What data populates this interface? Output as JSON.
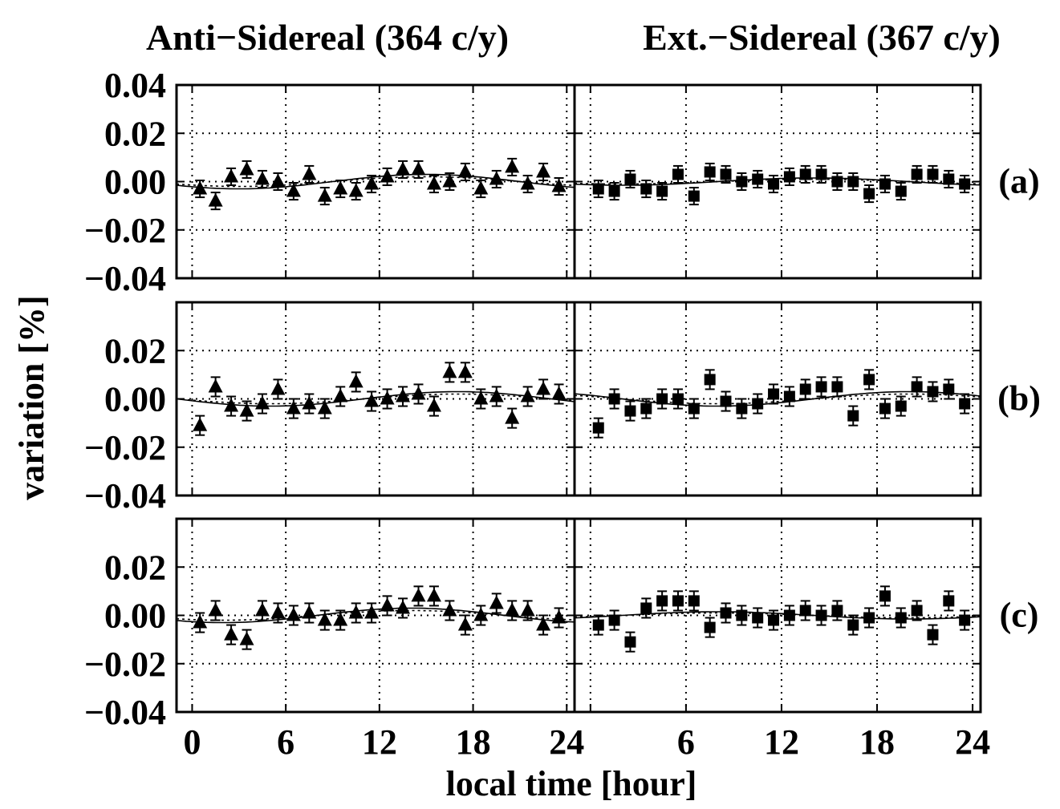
{
  "figure": {
    "title_left": "Anti−Sidereal (364 c/y)",
    "title_right": "Ext.−Sidereal (367 c/y)",
    "xlabel": "local time [hour]",
    "ylabel": "variation [%]"
  },
  "chart_data": [
    {
      "type": "scatter",
      "row_label": "(a)",
      "column": "Anti−Sidereal (364 c/y)",
      "marker": "triangle",
      "xlim": [
        -1,
        24.5
      ],
      "ylim": [
        -0.04,
        0.04
      ],
      "yticks": [
        "0.04",
        "0.02",
        "0.00",
        "−0.02",
        "−0.04"
      ],
      "xticks": [
        "0",
        "6",
        "12",
        "18",
        "24"
      ],
      "x": [
        0.5,
        1.5,
        2.5,
        3.5,
        4.5,
        5.5,
        6.5,
        7.5,
        8.5,
        9.5,
        10.5,
        11.5,
        12.5,
        13.5,
        14.5,
        15.5,
        16.5,
        17.5,
        18.5,
        19.5,
        20.5,
        21.5,
        22.5,
        23.5
      ],
      "y": [
        -0.003,
        -0.008,
        0.002,
        0.005,
        0.001,
        0.0,
        -0.004,
        0.003,
        -0.006,
        -0.003,
        -0.004,
        -0.001,
        0.002,
        0.005,
        0.005,
        -0.001,
        0.0,
        0.004,
        -0.003,
        0.001,
        0.006,
        -0.001,
        0.004,
        -0.002
      ],
      "error": 0.0035,
      "fit": {
        "mean": 0.0,
        "amp": 0.003,
        "phase_hour": 15
      },
      "fit_dotted": {
        "mean": 0.0,
        "amp": 0.002,
        "phase_hour": 15
      }
    },
    {
      "type": "scatter",
      "row_label": "(a)",
      "column": "Ext.−Sidereal (367 c/y)",
      "marker": "square",
      "xlim": [
        -1,
        24.5
      ],
      "ylim": [
        -0.04,
        0.04
      ],
      "yticks": [
        "0.04",
        "0.02",
        "0.00",
        "−0.02",
        "−0.04"
      ],
      "xticks": [
        "0",
        "6",
        "12",
        "18",
        "24"
      ],
      "x": [
        0.5,
        1.5,
        2.5,
        3.5,
        4.5,
        5.5,
        6.5,
        7.5,
        8.5,
        9.5,
        10.5,
        11.5,
        12.5,
        13.5,
        14.5,
        15.5,
        16.5,
        17.5,
        18.5,
        19.5,
        20.5,
        21.5,
        22.5,
        23.5
      ],
      "y": [
        -0.003,
        -0.004,
        0.001,
        -0.003,
        -0.004,
        0.003,
        -0.006,
        0.004,
        0.003,
        0.0,
        0.001,
        -0.001,
        0.002,
        0.003,
        0.003,
        0.0,
        0.0,
        -0.005,
        -0.001,
        -0.004,
        0.003,
        0.003,
        0.001,
        -0.001
      ],
      "error": 0.0035,
      "fit": {
        "mean": 0.0,
        "amp": 0.0015,
        "phase_hour": 14
      },
      "fit_dotted": {
        "mean": 0.0,
        "amp": 0.001,
        "phase_hour": 14
      }
    },
    {
      "type": "scatter",
      "row_label": "(b)",
      "column": "Anti−Sidereal (364 c/y)",
      "marker": "triangle",
      "xlim": [
        -1,
        24.5
      ],
      "ylim": [
        -0.04,
        0.04
      ],
      "yticks": [
        "0.02",
        "0.00",
        "−0.02",
        "−0.04"
      ],
      "xticks": [
        "0",
        "6",
        "12",
        "18",
        "24"
      ],
      "x": [
        0.5,
        1.5,
        2.5,
        3.5,
        4.5,
        5.5,
        6.5,
        7.5,
        8.5,
        9.5,
        10.5,
        11.5,
        12.5,
        13.5,
        14.5,
        15.5,
        16.5,
        17.5,
        18.5,
        19.5,
        20.5,
        21.5,
        22.5,
        23.5
      ],
      "y": [
        -0.011,
        0.005,
        -0.003,
        -0.005,
        -0.002,
        0.004,
        -0.004,
        -0.002,
        -0.004,
        0.001,
        0.007,
        -0.001,
        0.0,
        0.001,
        0.002,
        -0.003,
        0.011,
        0.011,
        0.0,
        0.001,
        -0.008,
        0.001,
        0.004,
        0.002
      ],
      "error": 0.004,
      "fit": {
        "mean": 0.0,
        "amp": 0.003,
        "phase_hour": 17
      },
      "fit_dotted": {
        "mean": 0.0,
        "amp": 0.002,
        "phase_hour": 17
      }
    },
    {
      "type": "scatter",
      "row_label": "(b)",
      "column": "Ext.−Sidereal (367 c/y)",
      "marker": "square",
      "xlim": [
        -1,
        24.5
      ],
      "ylim": [
        -0.04,
        0.04
      ],
      "yticks": [
        "0.02",
        "0.00",
        "−0.02",
        "−0.04"
      ],
      "xticks": [
        "0",
        "6",
        "12",
        "18",
        "24"
      ],
      "x": [
        0.5,
        1.5,
        2.5,
        3.5,
        4.5,
        5.5,
        6.5,
        7.5,
        8.5,
        9.5,
        10.5,
        11.5,
        12.5,
        13.5,
        14.5,
        15.5,
        16.5,
        17.5,
        18.5,
        19.5,
        20.5,
        21.5,
        22.5,
        23.5
      ],
      "y": [
        -0.012,
        0.0,
        -0.005,
        -0.004,
        0.0,
        0.0,
        -0.004,
        0.008,
        -0.001,
        -0.004,
        -0.002,
        0.002,
        0.001,
        0.004,
        0.005,
        0.005,
        -0.007,
        0.008,
        -0.004,
        -0.003,
        0.005,
        0.003,
        0.004,
        -0.002
      ],
      "error": 0.004,
      "fit": {
        "mean": 0.0,
        "amp": 0.003,
        "phase_hour": 20
      },
      "fit_dotted": {
        "mean": 0.0,
        "amp": 0.002,
        "phase_hour": 20
      }
    },
    {
      "type": "scatter",
      "row_label": "(c)",
      "column": "Anti−Sidereal (364 c/y)",
      "marker": "triangle",
      "xlim": [
        -1,
        24.5
      ],
      "ylim": [
        -0.04,
        0.04
      ],
      "yticks": [
        "0.02",
        "0.00",
        "−0.02",
        "−0.04"
      ],
      "xticks": [
        "0",
        "6",
        "12",
        "18",
        "24"
      ],
      "x": [
        0.5,
        1.5,
        2.5,
        3.5,
        4.5,
        5.5,
        6.5,
        7.5,
        8.5,
        9.5,
        10.5,
        11.5,
        12.5,
        13.5,
        14.5,
        15.5,
        16.5,
        17.5,
        18.5,
        19.5,
        20.5,
        21.5,
        22.5,
        23.5
      ],
      "y": [
        -0.003,
        0.002,
        -0.008,
        -0.01,
        0.002,
        0.001,
        0.0,
        0.001,
        -0.002,
        -0.002,
        0.001,
        0.001,
        0.004,
        0.003,
        0.008,
        0.008,
        0.002,
        -0.004,
        0.0,
        0.005,
        0.002,
        0.002,
        -0.004,
        -0.001
      ],
      "error": 0.004,
      "fit": {
        "mean": 0.0,
        "amp": 0.003,
        "phase_hour": 14
      },
      "fit_dotted": {
        "mean": 0.0,
        "amp": 0.002,
        "phase_hour": 14
      }
    },
    {
      "type": "scatter",
      "row_label": "(c)",
      "column": "Ext.−Sidereal (367 c/y)",
      "marker": "square",
      "xlim": [
        -1,
        24.5
      ],
      "ylim": [
        -0.04,
        0.04
      ],
      "yticks": [
        "0.02",
        "0.00",
        "−0.02",
        "−0.04"
      ],
      "xticks": [
        "0",
        "6",
        "12",
        "18",
        "24"
      ],
      "x": [
        0.5,
        1.5,
        2.5,
        3.5,
        4.5,
        5.5,
        6.5,
        7.5,
        8.5,
        9.5,
        10.5,
        11.5,
        12.5,
        13.5,
        14.5,
        15.5,
        16.5,
        17.5,
        18.5,
        19.5,
        20.5,
        21.5,
        22.5,
        23.5
      ],
      "y": [
        -0.004,
        -0.002,
        -0.011,
        0.003,
        0.006,
        0.006,
        0.006,
        -0.005,
        0.001,
        0.0,
        -0.001,
        -0.002,
        0.0,
        0.002,
        0.0,
        0.002,
        -0.004,
        -0.001,
        0.008,
        -0.001,
        0.002,
        -0.008,
        0.006,
        -0.002
      ],
      "error": 0.004,
      "fit": {
        "mean": 0.0,
        "amp": 0.0015,
        "phase_hour": 8
      },
      "fit_dotted": {
        "mean": 0.0,
        "amp": 0.001,
        "phase_hour": 8
      }
    }
  ]
}
